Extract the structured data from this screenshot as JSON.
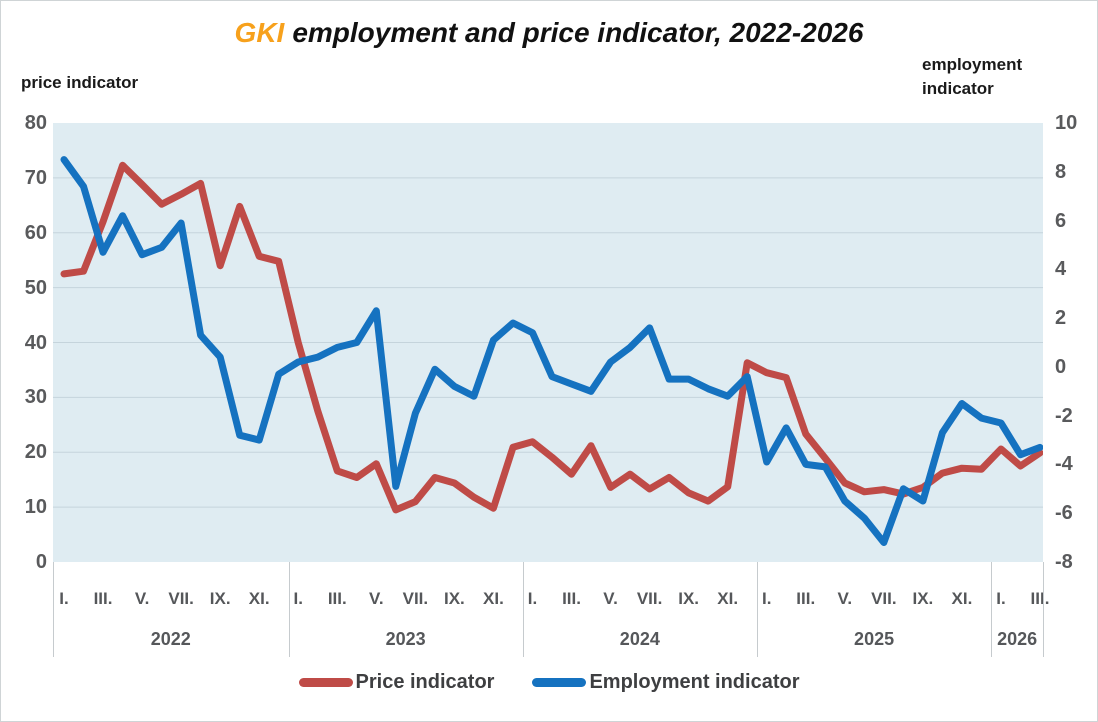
{
  "title": {
    "brand": "GKI",
    "rest": "employment and price indicator, 2022-2026"
  },
  "left_axis_title": "price indicator",
  "right_axis_title_line1": "employment",
  "right_axis_title_line2": "indicator",
  "colors": {
    "brand_orange": "#f7a11c",
    "price_red": "#bf4b47",
    "employment_blue": "#1572c0",
    "plot_background": "#dfecf2",
    "gridline": "#c5d4dc",
    "tick_text": "#595a5c"
  },
  "legend": [
    {
      "label": "Price indicator",
      "color": "#bf4b47"
    },
    {
      "label": "Employment indicator",
      "color": "#1572c0"
    }
  ],
  "chart_data": {
    "type": "line",
    "title": "GKI employment and price indicator, 2022-2026",
    "left_axis": {
      "label": "price indicator",
      "ticks": [
        80,
        70,
        60,
        50,
        40,
        30,
        20,
        10,
        0
      ],
      "range": [
        0,
        80
      ]
    },
    "right_axis": {
      "label": "employment indicator",
      "ticks": [
        10,
        8,
        6,
        4,
        2,
        0,
        -2,
        -4,
        -6,
        -8
      ],
      "range": [
        -8,
        10
      ]
    },
    "grid": "horizontal",
    "legend_position": "bottom",
    "years": [
      {
        "label": "2022",
        "months_count": 12,
        "tick_labels": [
          "I.",
          "III.",
          "V.",
          "VII.",
          "IX.",
          "XI."
        ]
      },
      {
        "label": "2023",
        "months_count": 12,
        "tick_labels": [
          "I.",
          "III.",
          "V.",
          "VII.",
          "IX.",
          "XI."
        ]
      },
      {
        "label": "2024",
        "months_count": 12,
        "tick_labels": [
          "I.",
          "III.",
          "V.",
          "VII.",
          "IX.",
          "XI."
        ]
      },
      {
        "label": "2025",
        "months_count": 12,
        "tick_labels": [
          "I.",
          "III.",
          "V.",
          "VII.",
          "IX.",
          "XI."
        ]
      },
      {
        "label": "2026",
        "months_count": 3,
        "tick_labels": [
          "I.",
          "III."
        ]
      }
    ],
    "series": [
      {
        "name": "Price indicator",
        "axis": "left",
        "color": "#bf4b47",
        "values": [
          52.5,
          53,
          62,
          72.3,
          68.8,
          65.2,
          67,
          69,
          54,
          64.8,
          55.7,
          54.8,
          40,
          27.5,
          16.6,
          15.4,
          17.9,
          9.5,
          11,
          15.4,
          14.4,
          11.8,
          9.8,
          20.9,
          21.9,
          19.1,
          16,
          21.2,
          13.6,
          16,
          13.3,
          15.4,
          12.6,
          11.1,
          13.7,
          36.3,
          34.5,
          33.6,
          23.3,
          18.9,
          14.4,
          12.8,
          13.2,
          12.4,
          13.6,
          16.2,
          17.1,
          16.9,
          20.6,
          17.5,
          19.9
        ]
      },
      {
        "name": "Employment indicator",
        "axis": "right",
        "color": "#1572c0",
        "values": [
          8.5,
          7.4,
          4.7,
          6.2,
          4.6,
          4.9,
          5.9,
          1.3,
          0.4,
          -2.8,
          -3,
          -0.3,
          0.2,
          0.4,
          0.8,
          1,
          2.3,
          -4.9,
          -1.9,
          -0.1,
          -0.8,
          -1.2,
          1.1,
          1.8,
          1.4,
          -0.4,
          -0.7,
          -1,
          0.2,
          0.8,
          1.6,
          -0.5,
          -0.5,
          -0.9,
          -1.2,
          -0.4,
          -3.9,
          -2.5,
          -4,
          -4.1,
          -5.5,
          -6.2,
          -7.2,
          -5,
          -5.5,
          -2.7,
          -1.5,
          -2.1,
          -2.3,
          -3.6,
          -3.3
        ]
      }
    ]
  }
}
